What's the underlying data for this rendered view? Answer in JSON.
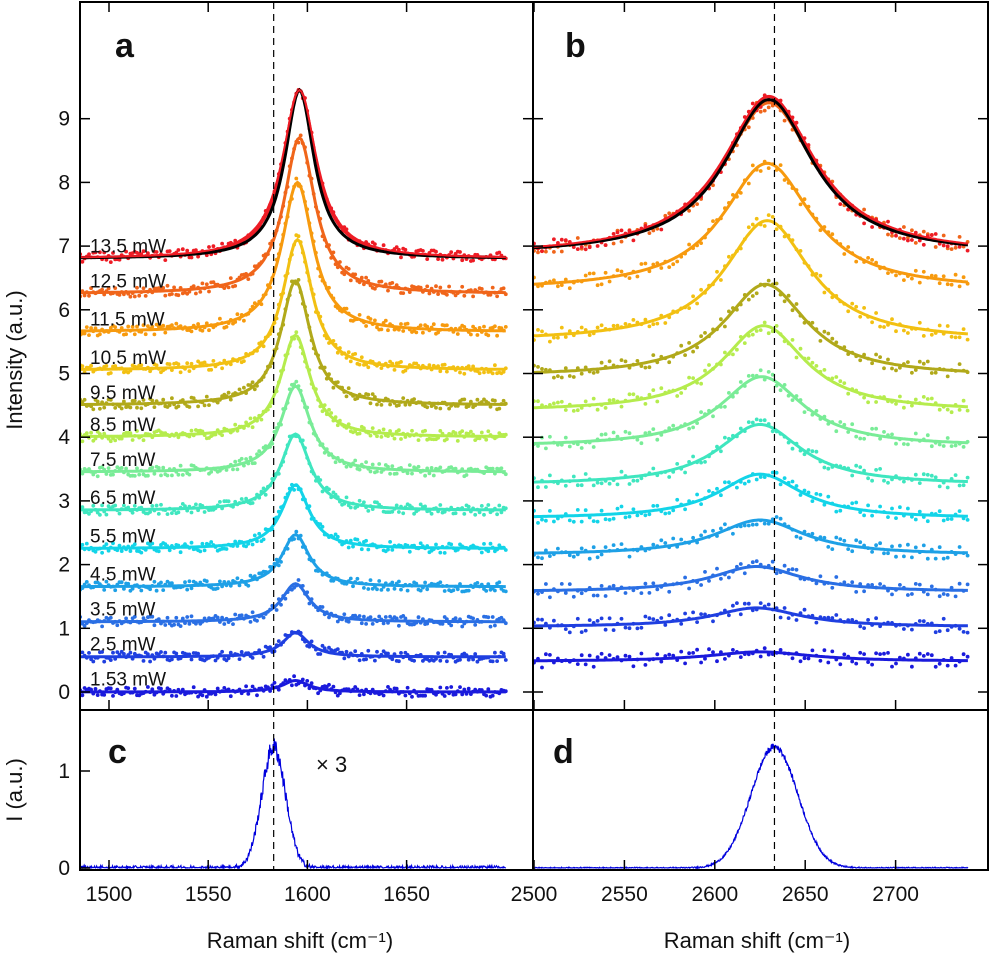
{
  "figure": {
    "y_title_top": "Intensity (a.u.)",
    "y_title_bottom": "I (a.u.)",
    "x_title_left": "Raman shift (cm⁻¹)",
    "x_title_right": "Raman shift (cm⁻¹)",
    "times3": "× 3"
  },
  "chart_data": [
    {
      "panel": "a",
      "type": "line",
      "title": "",
      "xlabel": "",
      "ylabel": "Intensity (a.u.)",
      "xlim": [
        1480,
        1700
      ],
      "ylim": [
        -0.25,
        9.6
      ],
      "yticks": [
        0,
        1,
        2,
        3,
        4,
        5,
        6,
        7,
        8,
        9
      ],
      "dashed_line_x": 1583,
      "markers": "dots = measured, solid = fit",
      "series": [
        {
          "name": "1.53 mW",
          "color": "#1a1adc",
          "offset": 0.0,
          "peak_center": 1594,
          "peak_height": 0.18,
          "peak_width": 8
        },
        {
          "name": "2.5 mW",
          "color": "#1f3fe0",
          "offset": 0.55,
          "peak_center": 1594,
          "peak_height": 0.38,
          "peak_width": 8
        },
        {
          "name": "3.5 mW",
          "color": "#2a6fe4",
          "offset": 1.1,
          "peak_center": 1594,
          "peak_height": 0.6,
          "peak_width": 8.5
        },
        {
          "name": "4.5 mW",
          "color": "#1ea0e6",
          "offset": 1.65,
          "peak_center": 1594,
          "peak_height": 0.82,
          "peak_width": 8.5
        },
        {
          "name": "5.5 mW",
          "color": "#13d4e8",
          "offset": 2.25,
          "peak_center": 1594,
          "peak_height": 1.0,
          "peak_width": 8.5
        },
        {
          "name": "6.5 mW",
          "color": "#3fe6bf",
          "offset": 2.85,
          "peak_center": 1594,
          "peak_height": 1.2,
          "peak_width": 9
        },
        {
          "name": "7.5 mW",
          "color": "#79ec97",
          "offset": 3.45,
          "peak_center": 1594,
          "peak_height": 1.35,
          "peak_width": 9
        },
        {
          "name": "8.5 mW",
          "color": "#b5ec4d",
          "offset": 4.0,
          "peak_center": 1594,
          "peak_height": 1.6,
          "peak_width": 9
        },
        {
          "name": "9.5 mW",
          "color": "#b1a91a",
          "offset": 4.5,
          "peak_center": 1594,
          "peak_height": 1.95,
          "peak_width": 9
        },
        {
          "name": "10.5 mW",
          "color": "#f2c012",
          "offset": 5.05,
          "peak_center": 1595,
          "peak_height": 2.05,
          "peak_width": 9
        },
        {
          "name": "11.5 mW",
          "color": "#f79a0e",
          "offset": 5.65,
          "peak_center": 1595,
          "peak_height": 2.35,
          "peak_width": 9.5
        },
        {
          "name": "12.5 mW",
          "color": "#f0651a",
          "offset": 6.25,
          "peak_center": 1596,
          "peak_height": 2.45,
          "peak_width": 9.5
        },
        {
          "name": "13.5 mW",
          "color": "#ee1c25",
          "offset": 6.8,
          "peak_center": 1596,
          "peak_height": 2.65,
          "peak_width": 10
        }
      ],
      "reference_fit": {
        "color": "#000000",
        "offset": 6.8,
        "peak_center": 1596,
        "peak_height": 2.65,
        "peak_width": 9
      }
    },
    {
      "panel": "b",
      "type": "line",
      "title": "",
      "xlabel": "",
      "ylabel": "",
      "xlim": [
        2500,
        2740
      ],
      "ylim": [
        -0.25,
        9.6
      ],
      "dashed_line_x": 2633,
      "series": [
        {
          "color": "#1a1adc",
          "offset": 0.48,
          "peak_center": 2625,
          "peak_height": 0.15,
          "peak_width": 35
        },
        {
          "color": "#1f3fe0",
          "offset": 1.02,
          "peak_center": 2623,
          "peak_height": 0.3,
          "peak_width": 30
        },
        {
          "color": "#2a6fe4",
          "offset": 1.57,
          "peak_center": 2623,
          "peak_height": 0.4,
          "peak_width": 30
        },
        {
          "color": "#1ea0e6",
          "offset": 2.15,
          "peak_center": 2625,
          "peak_height": 0.55,
          "peak_width": 30
        },
        {
          "color": "#13d4e8",
          "offset": 2.72,
          "peak_center": 2625,
          "peak_height": 0.7,
          "peak_width": 28
        },
        {
          "color": "#3fe6bf",
          "offset": 3.25,
          "peak_center": 2625,
          "peak_height": 0.95,
          "peak_width": 28
        },
        {
          "color": "#79ec97",
          "offset": 3.85,
          "peak_center": 2626,
          "peak_height": 1.1,
          "peak_width": 28
        },
        {
          "color": "#b5ec4d",
          "offset": 4.4,
          "peak_center": 2627,
          "peak_height": 1.35,
          "peak_width": 28
        },
        {
          "color": "#b1a91a",
          "offset": 4.95,
          "peak_center": 2628,
          "peak_height": 1.45,
          "peak_width": 28
        },
        {
          "color": "#f2c012",
          "offset": 5.5,
          "peak_center": 2629,
          "peak_height": 1.9,
          "peak_width": 29
        },
        {
          "color": "#f79a0e",
          "offset": 6.3,
          "peak_center": 2629,
          "peak_height": 2.0,
          "peak_width": 30
        },
        {
          "color": "#f0651a",
          "offset": 6.85,
          "peak_center": 2630,
          "peak_height": 2.4,
          "peak_width": 31
        },
        {
          "color": "#ee1c25",
          "offset": 6.85,
          "peak_center": 2630,
          "peak_height": 2.5,
          "peak_width": 30
        }
      ],
      "reference_fit": {
        "color": "#000000",
        "offset": 6.85,
        "peak_center": 2630,
        "peak_height": 2.45,
        "peak_width": 30
      }
    },
    {
      "panel": "c",
      "type": "line",
      "title": "",
      "xlabel": "Raman shift (cm⁻¹)",
      "ylabel": "I (a.u.)",
      "xlim": [
        1480,
        1700
      ],
      "ylim": [
        0,
        1.45
      ],
      "yticks": [
        0,
        1
      ],
      "xticks": [
        1500,
        1550,
        1600,
        1650
      ],
      "dashed_line_x": 1583,
      "annotation": "× 3",
      "series": [
        {
          "color": "#0000dd",
          "peak_center": 1583,
          "peak_height": 1.25,
          "sigma": 6
        }
      ]
    },
    {
      "panel": "d",
      "type": "line",
      "title": "",
      "xlabel": "Raman shift (cm⁻¹)",
      "ylabel": "",
      "xlim": [
        2500,
        2740
      ],
      "ylim": [
        0,
        1.45
      ],
      "xticks": [
        2500,
        2550,
        2600,
        2650,
        2700
      ],
      "dashed_line_x": 2633,
      "series": [
        {
          "color": "#0000dd",
          "peak_center": 2633,
          "peak_height": 1.25,
          "sigma": 13
        }
      ]
    }
  ]
}
